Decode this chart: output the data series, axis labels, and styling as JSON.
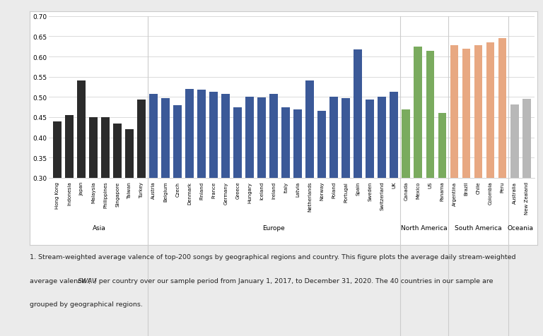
{
  "countries": [
    "Hong Kong",
    "Indonesia",
    "Japan",
    "Malaysia",
    "Philippines",
    "Singapore",
    "Taiwan",
    "Turkey",
    "Austria",
    "Belgium",
    "Czech",
    "Denmark",
    "Finland",
    "France",
    "Germany",
    "Greece",
    "Hungary",
    "Iceland",
    "Ireland",
    "Italy",
    "Latvia",
    "Netherlands",
    "Norway",
    "Poland",
    "Portugal",
    "Spain",
    "Sweden",
    "Switzerland",
    "UK",
    "Canada",
    "Mexico",
    "US",
    "Panama",
    "Argentina",
    "Brazil",
    "Chile",
    "Colombia",
    "Peru",
    "Australia",
    "New Zealand"
  ],
  "values": [
    0.44,
    0.455,
    0.54,
    0.45,
    0.45,
    0.435,
    0.42,
    0.493,
    0.508,
    0.497,
    0.48,
    0.52,
    0.518,
    0.513,
    0.508,
    0.475,
    0.5,
    0.498,
    0.508,
    0.475,
    0.47,
    0.54,
    0.465,
    0.5,
    0.497,
    0.617,
    0.494,
    0.5,
    0.512,
    0.47,
    0.625,
    0.615,
    0.46,
    0.628,
    0.62,
    0.628,
    0.635,
    0.645,
    0.482,
    0.495
  ],
  "colors": [
    "#2b2b2b",
    "#2b2b2b",
    "#2b2b2b",
    "#2b2b2b",
    "#2b2b2b",
    "#2b2b2b",
    "#2b2b2b",
    "#2b2b2b",
    "#3b5998",
    "#3b5998",
    "#3b5998",
    "#3b5998",
    "#3b5998",
    "#3b5998",
    "#3b5998",
    "#3b5998",
    "#3b5998",
    "#3b5998",
    "#3b5998",
    "#3b5998",
    "#3b5998",
    "#3b5998",
    "#3b5998",
    "#3b5998",
    "#3b5998",
    "#3b5998",
    "#3b5998",
    "#3b5998",
    "#3b5998",
    "#7aab5e",
    "#7aab5e",
    "#7aab5e",
    "#7aab5e",
    "#e8a882",
    "#e8a882",
    "#e8a882",
    "#e8a882",
    "#e8a882",
    "#b8b8b8",
    "#b8b8b8"
  ],
  "regions": [
    "Asia",
    "Europe",
    "North America",
    "South America",
    "Oceania"
  ],
  "region_centers": [
    3.5,
    18.0,
    30.5,
    35.0,
    38.5
  ],
  "region_separators": [
    7.5,
    28.5,
    32.5,
    37.5
  ],
  "ylim": [
    0.3,
    0.7
  ],
  "yticks": [
    0.3,
    0.35,
    0.4,
    0.45,
    0.5,
    0.55,
    0.6,
    0.65,
    0.7
  ],
  "figure_bg": "#ebebeb",
  "plot_bg": "#ffffff",
  "box_color": "#ffffff",
  "sep_color": "#cccccc",
  "grid_color": "#d5d5d5"
}
